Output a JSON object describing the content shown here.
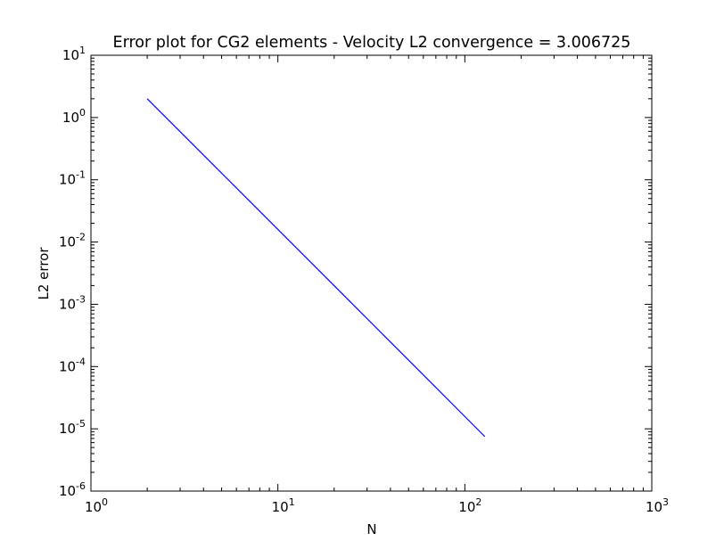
{
  "chart_data": {
    "type": "line",
    "title": "Error plot for CG2 elements - Velocity L2 convergence = 3.006725",
    "xlabel": "N",
    "ylabel": "L2 error",
    "xscale": "log",
    "yscale": "log",
    "xlim": [
      1,
      1000
    ],
    "ylim": [
      1e-06,
      10
    ],
    "grid": false,
    "x_ticks": [
      {
        "value": 1,
        "base": "10",
        "exp": "0"
      },
      {
        "value": 10,
        "base": "10",
        "exp": "1"
      },
      {
        "value": 100,
        "base": "10",
        "exp": "2"
      },
      {
        "value": 1000,
        "base": "10",
        "exp": "3"
      }
    ],
    "y_ticks": [
      {
        "value": 1e-06,
        "base": "10",
        "exp": "-6"
      },
      {
        "value": 1e-05,
        "base": "10",
        "exp": "-5"
      },
      {
        "value": 0.0001,
        "base": "10",
        "exp": "-4"
      },
      {
        "value": 0.001,
        "base": "10",
        "exp": "-3"
      },
      {
        "value": 0.01,
        "base": "10",
        "exp": "-2"
      },
      {
        "value": 0.1,
        "base": "10",
        "exp": "-1"
      },
      {
        "value": 1,
        "base": "10",
        "exp": "0"
      },
      {
        "value": 10,
        "base": "10",
        "exp": "1"
      }
    ],
    "series": [
      {
        "color": "#0000ff",
        "x": [
          2,
          4,
          8,
          16,
          32,
          64,
          128
        ],
        "y": [
          2.0,
          0.25,
          0.0312,
          0.00389,
          0.000485,
          6.04e-05,
          7.5e-06
        ]
      }
    ]
  }
}
